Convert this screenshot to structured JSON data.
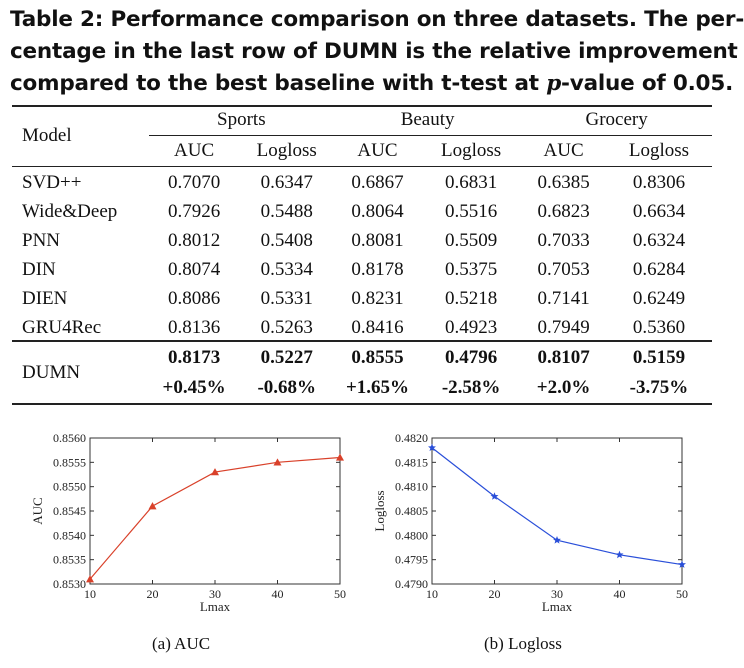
{
  "caption": {
    "line1": "Table 2: Performance comparison on three datasets. The per-",
    "line2": "centage in the last row of DUMN is the relative improvement",
    "line3_before": "compared to the best baseline with t-test at ",
    "line3_italic": "p",
    "line3_after": "-value of 0.05."
  },
  "table": {
    "model_header": "Model",
    "groups": [
      "Sports",
      "Beauty",
      "Grocery"
    ],
    "metrics": [
      "AUC",
      "Logloss",
      "AUC",
      "Logloss",
      "AUC",
      "Logloss"
    ],
    "rows": [
      {
        "model": "SVD++",
        "values": [
          "0.7070",
          "0.6347",
          "0.6867",
          "0.6831",
          "0.6385",
          "0.8306"
        ]
      },
      {
        "model": "Wide&Deep",
        "values": [
          "0.7926",
          "0.5488",
          "0.8064",
          "0.5516",
          "0.6823",
          "0.6634"
        ]
      },
      {
        "model": "PNN",
        "values": [
          "0.8012",
          "0.5408",
          "0.8081",
          "0.5509",
          "0.7033",
          "0.6324"
        ]
      },
      {
        "model": "DIN",
        "values": [
          "0.8074",
          "0.5334",
          "0.8178",
          "0.5375",
          "0.7053",
          "0.6284"
        ]
      },
      {
        "model": "DIEN",
        "values": [
          "0.8086",
          "0.5331",
          "0.8231",
          "0.5218",
          "0.7141",
          "0.6249"
        ]
      },
      {
        "model": "GRU4Rec",
        "values": [
          "0.8136",
          "0.5263",
          "0.8416",
          "0.4923",
          "0.7949",
          "0.5360"
        ]
      }
    ],
    "dumn": {
      "model": "DUMN",
      "values": [
        "0.8173",
        "0.5227",
        "0.8555",
        "0.4796",
        "0.8107",
        "0.5159"
      ],
      "improvements": [
        "+0.45%",
        "-0.68%",
        "+1.65%",
        "-2.58%",
        "+2.0%",
        "-3.75%"
      ]
    }
  },
  "chart_data": [
    {
      "type": "line",
      "x": [
        10,
        20,
        30,
        40,
        50
      ],
      "y": [
        0.8531,
        0.8546,
        0.8553,
        0.8555,
        0.8556
      ],
      "xlabel": "Lmax",
      "ylabel": "AUC",
      "xlim": [
        10,
        50
      ],
      "ylim": [
        0.853,
        0.856
      ],
      "xticks": [
        "10",
        "20",
        "30",
        "40",
        "50"
      ],
      "yticks": [
        "0.8530",
        "0.8535",
        "0.8540",
        "0.8545",
        "0.8550",
        "0.8555",
        "0.8560"
      ],
      "marker": "triangle",
      "color": "#d9412a",
      "subcaption": "(a)  AUC"
    },
    {
      "type": "line",
      "x": [
        10,
        20,
        30,
        40,
        50
      ],
      "y": [
        0.4818,
        0.4808,
        0.4799,
        0.4796,
        0.4794
      ],
      "xlabel": "Lmax",
      "ylabel": "Logloss",
      "xlim": [
        10,
        50
      ],
      "ylim": [
        0.479,
        0.482
      ],
      "xticks": [
        "10",
        "20",
        "30",
        "40",
        "50"
      ],
      "yticks": [
        "0.4790",
        "0.4795",
        "0.4800",
        "0.4805",
        "0.4810",
        "0.4815",
        "0.4820"
      ],
      "marker": "star",
      "color": "#2a4fd9",
      "subcaption": "(b)  Logloss"
    }
  ]
}
